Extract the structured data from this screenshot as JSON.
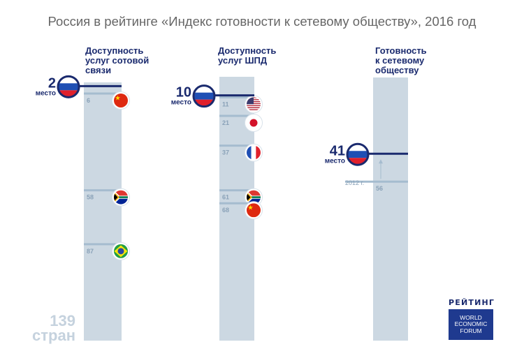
{
  "title": "Россия в рейтинге «Индекс готовности к сетевому обществу», 2016 год",
  "total": {
    "number": "139",
    "unit": "стран"
  },
  "rank_word": "место",
  "year_2012_label": "2012 г.",
  "source": {
    "label": "РЕЙТИНГ",
    "lines": [
      "WORLD",
      "ECONOMIC",
      "FORUM"
    ]
  },
  "colors": {
    "bar": "#ccd8e2",
    "tick": "#a5bccf",
    "navy": "#1a2a6e",
    "tick_text": "#8aa2b8",
    "big_number": "#c5d2de"
  },
  "chart_data": {
    "type": "rank_columns",
    "scale_max": 139,
    "columns": [
      {
        "title": [
          "Доступность",
          "услуг сотовой",
          "связи"
        ],
        "russia_rank": 2,
        "countries": [
          {
            "rank": 6,
            "country": "Китай",
            "flag": "china"
          },
          {
            "rank": 58,
            "country": "ЮАР",
            "flag": "south-africa"
          },
          {
            "rank": 87,
            "country": "Бразилия",
            "flag": "brazil"
          }
        ]
      },
      {
        "title": [
          "Доступность",
          "услуг ШПД"
        ],
        "russia_rank": 10,
        "countries": [
          {
            "rank": 11,
            "country": "США",
            "flag": "usa"
          },
          {
            "rank": 21,
            "country": "Япония",
            "flag": "japan"
          },
          {
            "rank": 37,
            "country": "Франция",
            "flag": "france"
          },
          {
            "rank": 61,
            "country": "ЮАР",
            "flag": "south-africa"
          },
          {
            "rank": 68,
            "country": "Китай",
            "flag": "china"
          }
        ]
      },
      {
        "title": [
          "Готовность",
          "к сетевому",
          "обществу"
        ],
        "russia_rank": 41,
        "countries": [
          {
            "rank": 56,
            "country": "Россия (2012 г.)",
            "flag": "none",
            "year": "2012 г."
          }
        ]
      }
    ]
  }
}
